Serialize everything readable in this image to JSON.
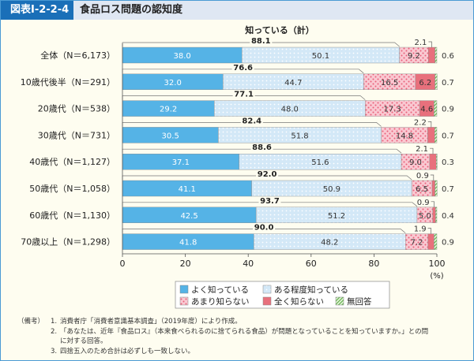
{
  "header": {
    "figure_id": "図表Ⅰ-2-2-4",
    "title": "食品ロス問題の認知度"
  },
  "chart_data": {
    "type": "bar",
    "stacked": true,
    "orientation": "horizontal",
    "title": "知っている（計）",
    "xlabel": "(%)",
    "xlim": [
      0,
      100
    ],
    "xticks": [
      "0",
      "20",
      "40",
      "60",
      "80",
      "100"
    ],
    "legend_placement": "bottom",
    "categories": [
      "全体（N＝6,173）",
      "10歳代後半（N＝291）",
      "20歳代（N＝538）",
      "30歳代（N＝731）",
      "40歳代（N＝1,127）",
      "50歳代（N＝1,058）",
      "60歳代（N＝1,130）",
      "70歳以上（N＝1,298）"
    ],
    "series": [
      {
        "name": "よく知っている",
        "color": "#55b3e6",
        "values": [
          38.0,
          32.0,
          29.2,
          30.5,
          37.1,
          41.1,
          42.5,
          41.8
        ]
      },
      {
        "name": "ある程度知っている",
        "color": "#d3e8f7",
        "values": [
          50.1,
          44.7,
          48.0,
          51.8,
          51.6,
          50.9,
          51.2,
          48.2
        ]
      },
      {
        "name": "あまり知らない",
        "color": "#f9c9d2",
        "values": [
          9.2,
          16.5,
          17.3,
          14.8,
          9.0,
          6.5,
          5.0,
          7.2
        ]
      },
      {
        "name": "全く知らない",
        "color": "#e8707c",
        "values": [
          2.1,
          6.2,
          4.6,
          2.2,
          2.1,
          0.9,
          0.9,
          1.9
        ]
      },
      {
        "name": "無回答",
        "color": "#a9d88a",
        "values": [
          0.6,
          0.7,
          0.9,
          0.7,
          0.3,
          0.7,
          0.4,
          0.9
        ]
      }
    ],
    "known_total": [
      "88.1",
      "76.6",
      "77.1",
      "82.4",
      "88.6",
      "92.0",
      "93.7",
      "90.0"
    ],
    "value_labels": [
      [
        "38.0",
        "50.1",
        "9.2",
        "2.1",
        "0.6"
      ],
      [
        "32.0",
        "44.7",
        "16.5",
        "6.2",
        "0.7"
      ],
      [
        "29.2",
        "48.0",
        "17.3",
        "4.6",
        "0.9"
      ],
      [
        "30.5",
        "51.8",
        "14.8",
        "2.2",
        "0.7"
      ],
      [
        "37.1",
        "51.6",
        "9.0",
        "2.1",
        "0.3"
      ],
      [
        "41.1",
        "50.9",
        "6.5",
        "0.9",
        "0.7"
      ],
      [
        "42.5",
        "51.2",
        "5.0",
        "0.9",
        "0.4"
      ],
      [
        "41.8",
        "48.2",
        "7.2",
        "1.9",
        "0.9"
      ]
    ]
  },
  "notes": {
    "label": "（備考）",
    "items": [
      {
        "n": "1.",
        "text": "消費者庁「消費者意識基本調査」（2019年度）により作成。"
      },
      {
        "n": "2.",
        "text": "「あなたは、近年『食品ロス』（本来食べられるのに捨てられる食品）が問題となっていることを知っていますか。」との問"
      },
      {
        "n": "",
        "text": "に対する回答。"
      },
      {
        "n": "3.",
        "text": "四捨五入のため合計は必ずしも一致しない。"
      }
    ]
  }
}
